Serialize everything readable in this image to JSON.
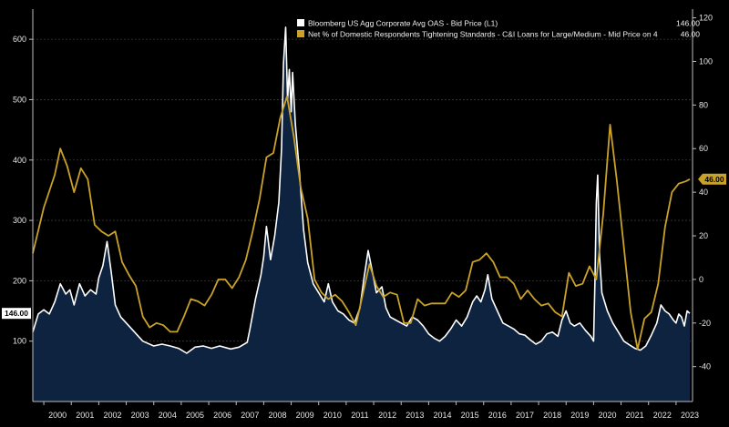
{
  "chart_data": {
    "type": "line",
    "title": "",
    "xlabel": "",
    "x_tick_labels": [
      "2000",
      "2001",
      "2002",
      "2003",
      "2004",
      "2005",
      "2006",
      "2007",
      "2008",
      "2009",
      "2010",
      "2011",
      "2012",
      "2013",
      "2014",
      "2015",
      "2016",
      "2017",
      "2018",
      "2019",
      "2020",
      "2021",
      "2022",
      "2023"
    ],
    "x_range": [
      1999.6,
      2023.6
    ],
    "left_axis": {
      "ticks": [
        100,
        200,
        300,
        400,
        500,
        600
      ],
      "range": [
        0,
        650
      ]
    },
    "right_axis": {
      "ticks": [
        -40,
        -20,
        0,
        20,
        40,
        60,
        80,
        100,
        120
      ],
      "range": [
        -56,
        124
      ]
    },
    "series": [
      {
        "name": "Bloomberg US Agg Corporate Avg OAS - Bid Price (L1)",
        "last_value": "146.00",
        "axis": "left",
        "style": "area",
        "color": "#ffffff",
        "fill": "#0d2340",
        "points": [
          [
            1999.6,
            115
          ],
          [
            1999.8,
            145
          ],
          [
            2000.0,
            152
          ],
          [
            2000.2,
            145
          ],
          [
            2000.4,
            165
          ],
          [
            2000.6,
            195
          ],
          [
            2000.8,
            178
          ],
          [
            2000.95,
            185
          ],
          [
            2001.1,
            160
          ],
          [
            2001.3,
            195
          ],
          [
            2001.5,
            175
          ],
          [
            2001.7,
            185
          ],
          [
            2001.9,
            178
          ],
          [
            2002.0,
            205
          ],
          [
            2002.15,
            225
          ],
          [
            2002.3,
            265
          ],
          [
            2002.45,
            215
          ],
          [
            2002.6,
            160
          ],
          [
            2002.8,
            140
          ],
          [
            2003.0,
            130
          ],
          [
            2003.3,
            115
          ],
          [
            2003.6,
            100
          ],
          [
            2004.0,
            92
          ],
          [
            2004.3,
            95
          ],
          [
            2004.6,
            92
          ],
          [
            2004.9,
            88
          ],
          [
            2005.2,
            80
          ],
          [
            2005.5,
            90
          ],
          [
            2005.8,
            92
          ],
          [
            2006.1,
            88
          ],
          [
            2006.4,
            92
          ],
          [
            2006.8,
            87
          ],
          [
            2007.1,
            90
          ],
          [
            2007.4,
            98
          ],
          [
            2007.5,
            120
          ],
          [
            2007.7,
            170
          ],
          [
            2007.9,
            210
          ],
          [
            2008.0,
            240
          ],
          [
            2008.1,
            290
          ],
          [
            2008.25,
            235
          ],
          [
            2008.4,
            275
          ],
          [
            2008.55,
            330
          ],
          [
            2008.65,
            420
          ],
          [
            2008.72,
            560
          ],
          [
            2008.8,
            620
          ],
          [
            2008.87,
            500
          ],
          [
            2008.93,
            550
          ],
          [
            2009.0,
            480
          ],
          [
            2009.05,
            545
          ],
          [
            2009.15,
            460
          ],
          [
            2009.3,
            380
          ],
          [
            2009.45,
            285
          ],
          [
            2009.6,
            230
          ],
          [
            2009.8,
            195
          ],
          [
            2010.0,
            180
          ],
          [
            2010.2,
            165
          ],
          [
            2010.35,
            195
          ],
          [
            2010.5,
            165
          ],
          [
            2010.7,
            150
          ],
          [
            2010.9,
            145
          ],
          [
            2011.1,
            135
          ],
          [
            2011.3,
            130
          ],
          [
            2011.5,
            155
          ],
          [
            2011.65,
            205
          ],
          [
            2011.8,
            250
          ],
          [
            2011.95,
            215
          ],
          [
            2012.1,
            180
          ],
          [
            2012.3,
            190
          ],
          [
            2012.45,
            155
          ],
          [
            2012.6,
            140
          ],
          [
            2012.8,
            135
          ],
          [
            2013.0,
            130
          ],
          [
            2013.2,
            125
          ],
          [
            2013.4,
            140
          ],
          [
            2013.6,
            135
          ],
          [
            2013.8,
            125
          ],
          [
            2014.0,
            112
          ],
          [
            2014.2,
            105
          ],
          [
            2014.4,
            100
          ],
          [
            2014.6,
            108
          ],
          [
            2014.8,
            120
          ],
          [
            2015.0,
            135
          ],
          [
            2015.2,
            125
          ],
          [
            2015.4,
            140
          ],
          [
            2015.6,
            165
          ],
          [
            2015.75,
            175
          ],
          [
            2015.9,
            165
          ],
          [
            2016.05,
            185
          ],
          [
            2016.15,
            210
          ],
          [
            2016.3,
            170
          ],
          [
            2016.5,
            150
          ],
          [
            2016.7,
            130
          ],
          [
            2016.9,
            125
          ],
          [
            2017.1,
            120
          ],
          [
            2017.3,
            112
          ],
          [
            2017.5,
            110
          ],
          [
            2017.7,
            102
          ],
          [
            2017.9,
            95
          ],
          [
            2018.1,
            100
          ],
          [
            2018.3,
            112
          ],
          [
            2018.5,
            115
          ],
          [
            2018.7,
            108
          ],
          [
            2018.85,
            135
          ],
          [
            2019.0,
            150
          ],
          [
            2019.15,
            130
          ],
          [
            2019.3,
            125
          ],
          [
            2019.5,
            130
          ],
          [
            2019.7,
            118
          ],
          [
            2019.9,
            108
          ],
          [
            2020.0,
            100
          ],
          [
            2020.05,
            200
          ],
          [
            2020.1,
            330
          ],
          [
            2020.15,
            375
          ],
          [
            2020.22,
            240
          ],
          [
            2020.3,
            180
          ],
          [
            2020.5,
            150
          ],
          [
            2020.7,
            130
          ],
          [
            2020.9,
            115
          ],
          [
            2021.1,
            100
          ],
          [
            2021.3,
            94
          ],
          [
            2021.5,
            88
          ],
          [
            2021.7,
            85
          ],
          [
            2021.9,
            92
          ],
          [
            2022.1,
            110
          ],
          [
            2022.3,
            130
          ],
          [
            2022.45,
            160
          ],
          [
            2022.6,
            150
          ],
          [
            2022.75,
            145
          ],
          [
            2022.9,
            135
          ],
          [
            2023.0,
            130
          ],
          [
            2023.1,
            145
          ],
          [
            2023.2,
            140
          ],
          [
            2023.3,
            125
          ],
          [
            2023.4,
            150
          ],
          [
            2023.5,
            146
          ]
        ]
      },
      {
        "name": "Net % of Domestic Respondents Tightening Standards - C&I Loans for Large/Medium - Mid Price on 4",
        "last_value": "46.00",
        "axis": "right",
        "style": "line",
        "color": "#c9a227",
        "points": [
          [
            1999.6,
            12
          ],
          [
            2000.0,
            33
          ],
          [
            2000.4,
            48
          ],
          [
            2000.6,
            60
          ],
          [
            2000.85,
            52
          ],
          [
            2001.1,
            40
          ],
          [
            2001.35,
            51
          ],
          [
            2001.6,
            46
          ],
          [
            2001.85,
            25
          ],
          [
            2002.1,
            22
          ],
          [
            2002.35,
            20
          ],
          [
            2002.6,
            22
          ],
          [
            2002.85,
            8
          ],
          [
            2003.1,
            2
          ],
          [
            2003.35,
            -3
          ],
          [
            2003.6,
            -17
          ],
          [
            2003.85,
            -22
          ],
          [
            2004.1,
            -20
          ],
          [
            2004.35,
            -21
          ],
          [
            2004.6,
            -24
          ],
          [
            2004.85,
            -24
          ],
          [
            2005.1,
            -17
          ],
          [
            2005.35,
            -9
          ],
          [
            2005.6,
            -10
          ],
          [
            2005.85,
            -12
          ],
          [
            2006.1,
            -7
          ],
          [
            2006.35,
            0
          ],
          [
            2006.6,
            0
          ],
          [
            2006.85,
            -4
          ],
          [
            2007.1,
            1
          ],
          [
            2007.35,
            9
          ],
          [
            2007.6,
            22
          ],
          [
            2007.85,
            37
          ],
          [
            2008.1,
            56
          ],
          [
            2008.35,
            58
          ],
          [
            2008.6,
            74
          ],
          [
            2008.85,
            84
          ],
          [
            2009.1,
            65
          ],
          [
            2009.35,
            42
          ],
          [
            2009.6,
            28
          ],
          [
            2009.85,
            0
          ],
          [
            2010.1,
            -6
          ],
          [
            2010.35,
            -9
          ],
          [
            2010.6,
            -7
          ],
          [
            2010.85,
            -10
          ],
          [
            2011.1,
            -15
          ],
          [
            2011.35,
            -21
          ],
          [
            2011.6,
            -7
          ],
          [
            2011.85,
            7
          ],
          [
            2012.1,
            -3
          ],
          [
            2012.35,
            -8
          ],
          [
            2012.6,
            -6
          ],
          [
            2012.85,
            -7
          ],
          [
            2013.1,
            -20
          ],
          [
            2013.35,
            -20
          ],
          [
            2013.6,
            -9
          ],
          [
            2013.85,
            -12
          ],
          [
            2014.1,
            -11
          ],
          [
            2014.35,
            -11
          ],
          [
            2014.6,
            -11
          ],
          [
            2014.85,
            -6
          ],
          [
            2015.1,
            -8
          ],
          [
            2015.35,
            -5
          ],
          [
            2015.6,
            8
          ],
          [
            2015.85,
            9
          ],
          [
            2016.1,
            12
          ],
          [
            2016.35,
            8
          ],
          [
            2016.6,
            1
          ],
          [
            2016.85,
            1
          ],
          [
            2017.1,
            -2
          ],
          [
            2017.35,
            -9
          ],
          [
            2017.6,
            -5
          ],
          [
            2017.85,
            -9
          ],
          [
            2018.1,
            -12
          ],
          [
            2018.35,
            -11
          ],
          [
            2018.6,
            -15
          ],
          [
            2018.85,
            -17
          ],
          [
            2019.1,
            3
          ],
          [
            2019.35,
            -3
          ],
          [
            2019.6,
            -2
          ],
          [
            2019.85,
            6
          ],
          [
            2020.1,
            0
          ],
          [
            2020.35,
            30
          ],
          [
            2020.6,
            71
          ],
          [
            2020.85,
            45
          ],
          [
            2021.1,
            15
          ],
          [
            2021.35,
            -15
          ],
          [
            2021.6,
            -32
          ],
          [
            2021.85,
            -18
          ],
          [
            2022.1,
            -15
          ],
          [
            2022.35,
            -2
          ],
          [
            2022.6,
            24
          ],
          [
            2022.85,
            40
          ],
          [
            2023.1,
            44
          ],
          [
            2023.35,
            45
          ],
          [
            2023.5,
            46
          ]
        ]
      }
    ]
  }
}
